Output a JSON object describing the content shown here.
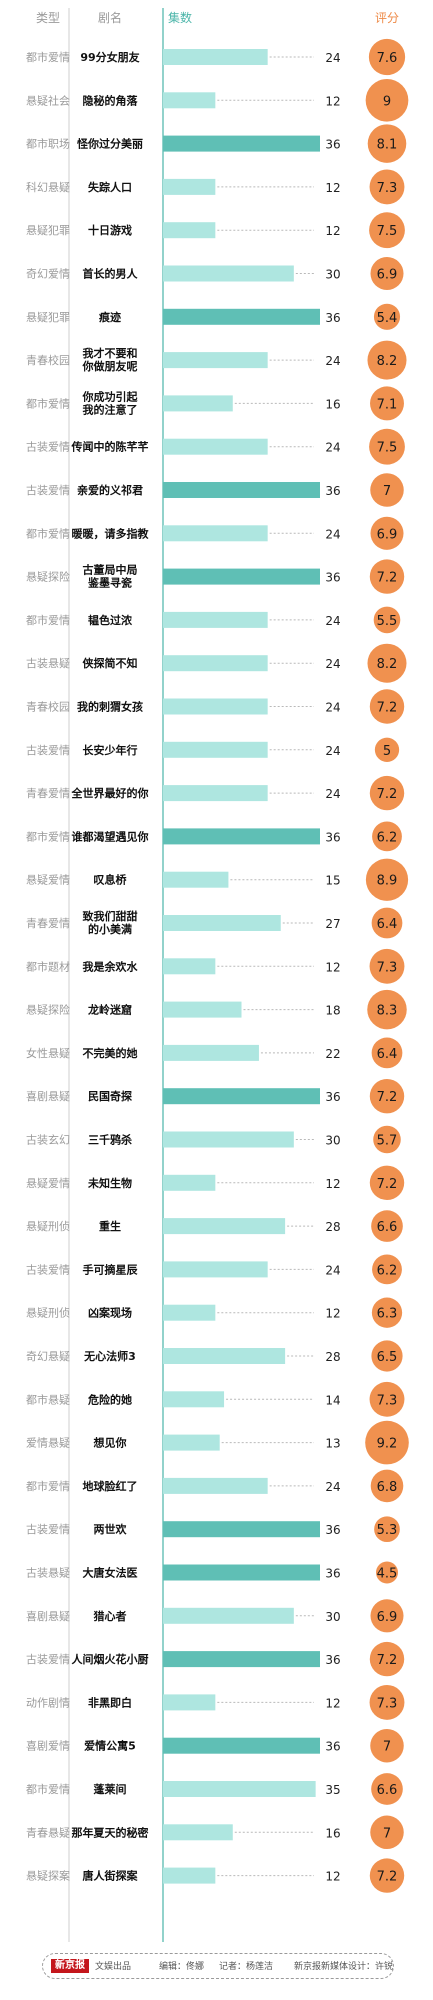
{
  "header": {
    "genre": "类型",
    "title": "剧名",
    "episodes": "集数",
    "score": "评分"
  },
  "colors": {
    "bar_36": "#5fbfb5",
    "bar_other": "#aee6e0",
    "divider": "#6fc3ba",
    "bubble": "#f0914f",
    "genre_text": "#9a9a9a",
    "header_teal": "#4bb5a9",
    "header_orange": "#ee8a47"
  },
  "chart_data": {
    "type": "table",
    "columns": [
      "genre",
      "title",
      "episodes",
      "score"
    ],
    "xlim": [
      0,
      36
    ],
    "rows": [
      {
        "genre": "都市爱情",
        "title": [
          "99分女朋友"
        ],
        "episodes": 24,
        "score": 7.6
      },
      {
        "genre": "悬疑社会",
        "title": [
          "隐秘的角落"
        ],
        "episodes": 12,
        "score": 9
      },
      {
        "genre": "都市职场",
        "title": [
          "怪你过分美丽"
        ],
        "episodes": 36,
        "score": 8.1
      },
      {
        "genre": "科幻悬疑",
        "title": [
          "失踪人口"
        ],
        "episodes": 12,
        "score": 7.3
      },
      {
        "genre": "悬疑犯罪",
        "title": [
          "十日游戏"
        ],
        "episodes": 12,
        "score": 7.5
      },
      {
        "genre": "奇幻爱情",
        "title": [
          "首长的男人"
        ],
        "episodes": 30,
        "score": 6.9
      },
      {
        "genre": "悬疑犯罪",
        "title": [
          "痕迹"
        ],
        "episodes": 36,
        "score": 5.4
      },
      {
        "genre": "青春校园",
        "title": [
          "我才不要和",
          "你做朋友呢"
        ],
        "episodes": 24,
        "score": 8.2
      },
      {
        "genre": "都市爱情",
        "title": [
          "你成功引起",
          "我的注意了"
        ],
        "episodes": 16,
        "score": 7.1
      },
      {
        "genre": "古装爱情",
        "title": [
          "传闻中的陈芊芊"
        ],
        "episodes": 24,
        "score": 7.5
      },
      {
        "genre": "古装爱情",
        "title": [
          "亲爱的义祁君"
        ],
        "episodes": 36,
        "score": 7
      },
      {
        "genre": "都市爱情",
        "title": [
          "暖暖，请多指教"
        ],
        "episodes": 24,
        "score": 6.9
      },
      {
        "genre": "悬疑探险",
        "title": [
          "古董局中局",
          "鉴墨寻瓷"
        ],
        "episodes": 36,
        "score": 7.2
      },
      {
        "genre": "都市爱情",
        "title": [
          "韫色过浓"
        ],
        "episodes": 24,
        "score": 5.5
      },
      {
        "genre": "古装悬疑",
        "title": [
          "侠探简不知"
        ],
        "episodes": 24,
        "score": 8.2
      },
      {
        "genre": "青春校园",
        "title": [
          "我的刺猬女孩"
        ],
        "episodes": 24,
        "score": 7.2
      },
      {
        "genre": "古装爱情",
        "title": [
          "长安少年行"
        ],
        "episodes": 24,
        "score": 5
      },
      {
        "genre": "青春爱情",
        "title": [
          "全世界最好的你"
        ],
        "episodes": 24,
        "score": 7.2
      },
      {
        "genre": "都市爱情",
        "title": [
          "谁都渴望遇见你"
        ],
        "episodes": 36,
        "score": 6.2
      },
      {
        "genre": "悬疑爱情",
        "title": [
          "叹息桥"
        ],
        "episodes": 15,
        "score": 8.9
      },
      {
        "genre": "青春爱情",
        "title": [
          "致我们甜甜",
          "的小美满"
        ],
        "episodes": 27,
        "score": 6.4
      },
      {
        "genre": "都市题材",
        "title": [
          "我是余欢水"
        ],
        "episodes": 12,
        "score": 7.3
      },
      {
        "genre": "悬疑探险",
        "title": [
          "龙岭迷窟"
        ],
        "episodes": 18,
        "score": 8.3
      },
      {
        "genre": "女性悬疑",
        "title": [
          "不完美的她"
        ],
        "episodes": 22,
        "score": 6.4
      },
      {
        "genre": "喜剧悬疑",
        "title": [
          "民国奇探"
        ],
        "episodes": 36,
        "score": 7.2
      },
      {
        "genre": "古装玄幻",
        "title": [
          "三千鸦杀"
        ],
        "episodes": 30,
        "score": 5.7
      },
      {
        "genre": "悬疑爱情",
        "title": [
          "未知生物"
        ],
        "episodes": 12,
        "score": 7.2
      },
      {
        "genre": "悬疑刑侦",
        "title": [
          "重生"
        ],
        "episodes": 28,
        "score": 6.6
      },
      {
        "genre": "古装爱情",
        "title": [
          "手可摘星辰"
        ],
        "episodes": 24,
        "score": 6.2
      },
      {
        "genre": "悬疑刑侦",
        "title": [
          "凶案现场"
        ],
        "episodes": 12,
        "score": 6.3
      },
      {
        "genre": "奇幻悬疑",
        "title": [
          "无心法师3"
        ],
        "episodes": 28,
        "score": 6.5
      },
      {
        "genre": "都市悬疑",
        "title": [
          "危险的她"
        ],
        "episodes": 14,
        "score": 7.3
      },
      {
        "genre": "爱情悬疑",
        "title": [
          "想见你"
        ],
        "episodes": 13,
        "score": 9.2
      },
      {
        "genre": "都市爱情",
        "title": [
          "地球脸红了"
        ],
        "episodes": 24,
        "score": 6.8
      },
      {
        "genre": "古装爱情",
        "title": [
          "两世欢"
        ],
        "episodes": 36,
        "score": 5.3
      },
      {
        "genre": "古装悬疑",
        "title": [
          "大唐女法医"
        ],
        "episodes": 36,
        "score": 4.5
      },
      {
        "genre": "喜剧悬疑",
        "title": [
          "猎心者"
        ],
        "episodes": 30,
        "score": 6.9
      },
      {
        "genre": "古装爱情",
        "title": [
          "人间烟火花小厨"
        ],
        "episodes": 36,
        "score": 7.2
      },
      {
        "genre": "动作剧情",
        "title": [
          "非黑即白"
        ],
        "episodes": 12,
        "score": 7.3
      },
      {
        "genre": "喜剧爱情",
        "title": [
          "爱情公寓5"
        ],
        "episodes": 36,
        "score": 7
      },
      {
        "genre": "都市爱情",
        "title": [
          "蓬莱间"
        ],
        "episodes": 35,
        "score": 6.6
      },
      {
        "genre": "青春悬疑",
        "title": [
          "那年夏天的秘密"
        ],
        "episodes": 16,
        "score": 7
      },
      {
        "genre": "悬疑探案",
        "title": [
          "唐人街探案"
        ],
        "episodes": 12,
        "score": 7.2
      }
    ]
  },
  "footer": {
    "logo": "新京报",
    "producer": "文娱出品",
    "editor": "编辑：佟娜",
    "reporter": "记者：杨莲洁",
    "designer": "新京报新媒体设计：许锐"
  }
}
